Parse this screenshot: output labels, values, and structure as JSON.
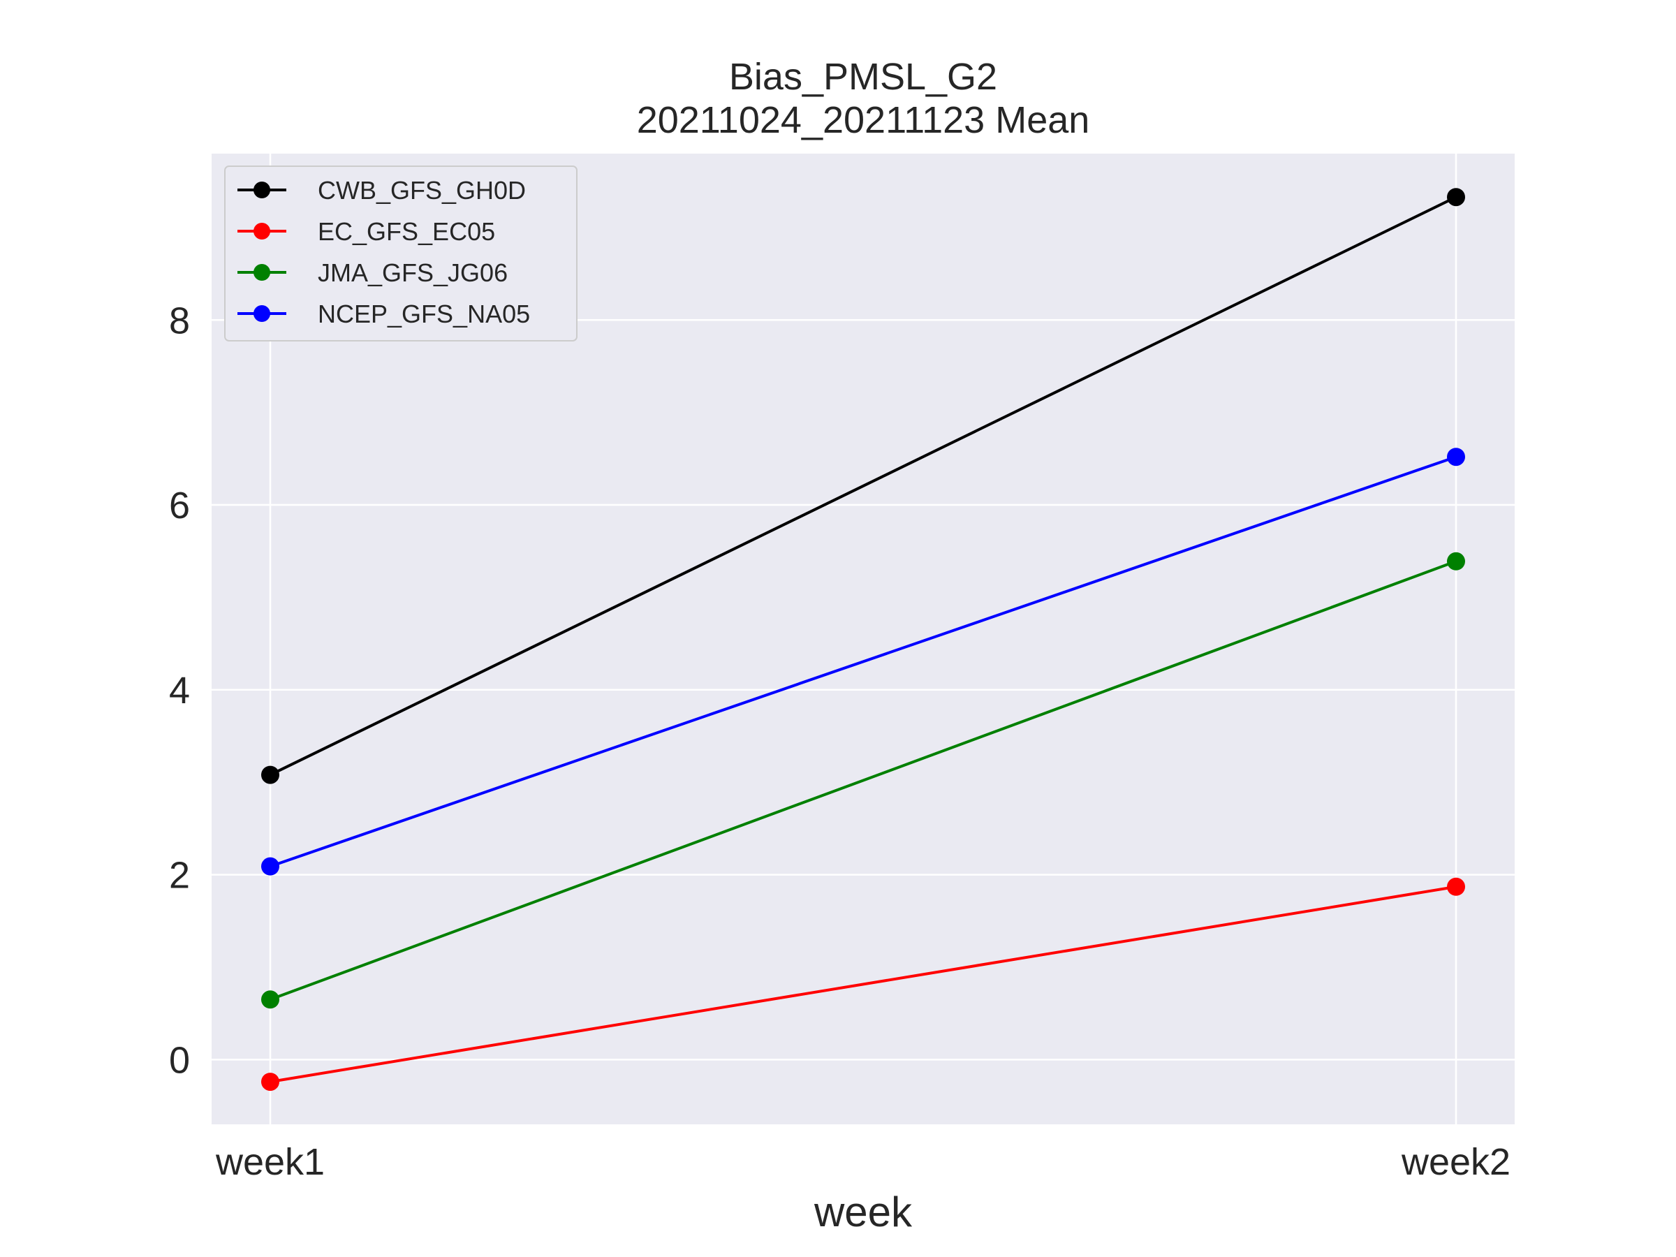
{
  "chart_data": {
    "type": "line",
    "title": "Bias_PMSL_G2",
    "subtitle": "20211024_20211123 Mean",
    "xlabel": "week",
    "ylabel": "",
    "categories": [
      "week1",
      "week2"
    ],
    "ylim": [
      -0.7,
      9.8
    ],
    "yticks": [
      0,
      2,
      4,
      6,
      8
    ],
    "grid": true,
    "legend_position": "upper-left",
    "background": "#eaeaf2",
    "series": [
      {
        "name": "CWB_GFS_GH0D",
        "color": "#000000",
        "values": [
          3.08,
          9.33
        ]
      },
      {
        "name": "EC_GFS_EC05",
        "color": "#ff0000",
        "values": [
          -0.24,
          1.87
        ]
      },
      {
        "name": "JMA_GFS_JG06",
        "color": "#008000",
        "values": [
          0.65,
          5.39
        ]
      },
      {
        "name": "NCEP_GFS_NA05",
        "color": "#0000ff",
        "values": [
          2.09,
          6.52
        ]
      }
    ]
  }
}
